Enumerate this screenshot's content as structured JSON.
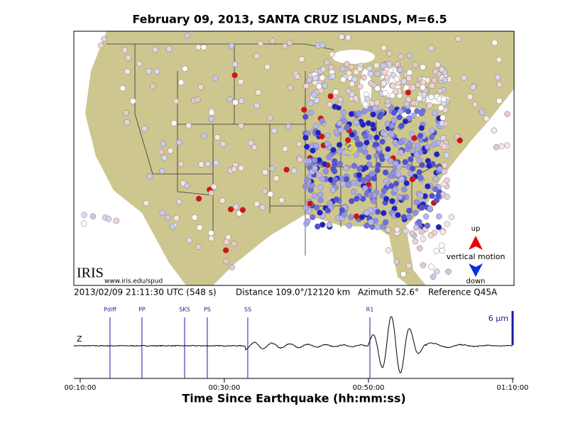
{
  "chart_data": {
    "type": "seismogram",
    "title": "February 09, 2013, SANTA CRUZ ISLANDS, M=6.5",
    "info": {
      "time": "2013/02/09 21:11:30 UTC (548 s)",
      "distance": "Distance 109.0°/12120 km",
      "azimuth": "Azimuth  52.6°",
      "reference": "Reference Q45A"
    },
    "legend": {
      "up": "up",
      "label": "vertical motion",
      "down": "down"
    },
    "logo": "IRIS",
    "url": "www.iris.edu/spud",
    "channel": "Z",
    "scale_label": "6 μm",
    "xlabel": "Time Since Earthquake (hh:mm:ss)",
    "xlim": [
      547,
      4212
    ],
    "xticks": [
      {
        "value": 600,
        "label": "00:10:00"
      },
      {
        "value": 1800,
        "label": "00:30:00"
      },
      {
        "value": 3000,
        "label": "00:50:00"
      },
      {
        "value": 4200,
        "label": "01:10:00"
      }
    ],
    "phases": [
      {
        "name": "Pdiff",
        "time": 848
      },
      {
        "name": "PP",
        "time": 1114
      },
      {
        "name": "SKS",
        "time": 1469
      },
      {
        "name": "PS",
        "time": 1658
      },
      {
        "name": "SS",
        "time": 1995
      },
      {
        "name": "R1",
        "time": 3012
      }
    ],
    "phase_color": "#1a1aa0"
  }
}
